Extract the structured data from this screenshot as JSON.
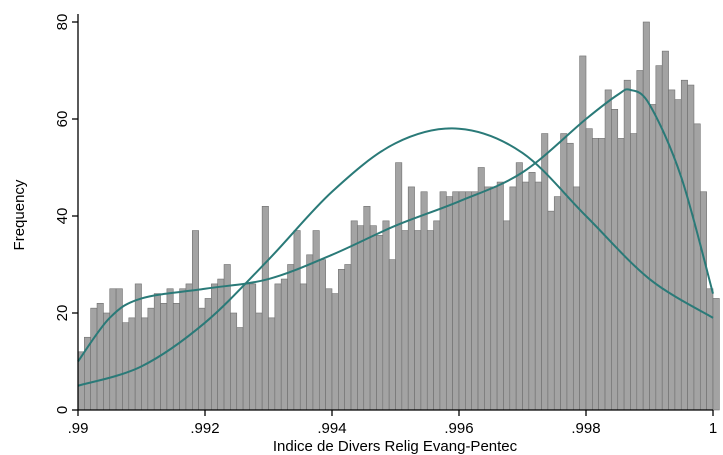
{
  "chart_data": {
    "type": "bar",
    "title": "",
    "xlabel": "Indice de Divers Relig Evang-Pentec",
    "ylabel": "Frequency",
    "xlim": [
      0.99,
      1.0
    ],
    "ylim": [
      0,
      80
    ],
    "x_ticks": [
      0.99,
      0.992,
      0.994,
      0.996,
      0.998,
      1.0
    ],
    "x_tick_labels": [
      ".99",
      ".992",
      ".994",
      ".996",
      ".998",
      "1"
    ],
    "y_ticks": [
      0,
      20,
      40,
      60,
      80
    ],
    "y_tick_labels": [
      "0",
      "20",
      "40",
      "60",
      "80"
    ],
    "grid": false,
    "bin_start": 0.99,
    "bin_width": 0.0001,
    "values": [
      12,
      15,
      21,
      22,
      20,
      25,
      25,
      18,
      19,
      26,
      19,
      21,
      24,
      22,
      25,
      22,
      25,
      26,
      37,
      21,
      23,
      26,
      27,
      30,
      20,
      17,
      26,
      26,
      20,
      42,
      19,
      26,
      27,
      30,
      37,
      26,
      32,
      37,
      31,
      25,
      24,
      29,
      30,
      39,
      38,
      42,
      38,
      36,
      39,
      31,
      51,
      37,
      46,
      37,
      45,
      37,
      39,
      45,
      44,
      45,
      45,
      45,
      45,
      50,
      46,
      46,
      47,
      39,
      46,
      51,
      47,
      49,
      47,
      57,
      41,
      44,
      57,
      55,
      46,
      73,
      58,
      56,
      56,
      66,
      62,
      56,
      68,
      57,
      70,
      80,
      63,
      71,
      74,
      66,
      64,
      68,
      67,
      59,
      45,
      25,
      23
    ],
    "series": [
      {
        "type": "line",
        "color": "#2a7a78",
        "x": [
          0.99,
          0.991,
          0.992,
          0.993,
          0.994,
          0.995,
          0.996,
          0.997,
          0.998,
          0.999,
          1.0
        ],
        "y": [
          5,
          9,
          18,
          31,
          45,
          55,
          58,
          53,
          40,
          27,
          19
        ]
      },
      {
        "type": "line",
        "color": "#2a7a78",
        "x": [
          0.99,
          0.9905,
          0.991,
          0.992,
          0.993,
          0.994,
          0.995,
          0.996,
          0.997,
          0.998,
          0.9985,
          0.9987,
          0.999,
          0.9995,
          1.0
        ],
        "y": [
          10,
          19,
          23,
          25,
          27,
          32,
          38,
          43,
          49,
          60,
          65,
          66,
          63,
          48,
          24
        ]
      }
    ],
    "bar_color": "#a3a3a3",
    "bar_edge_color": "#6e6e6e",
    "axis_color": "#000000"
  }
}
